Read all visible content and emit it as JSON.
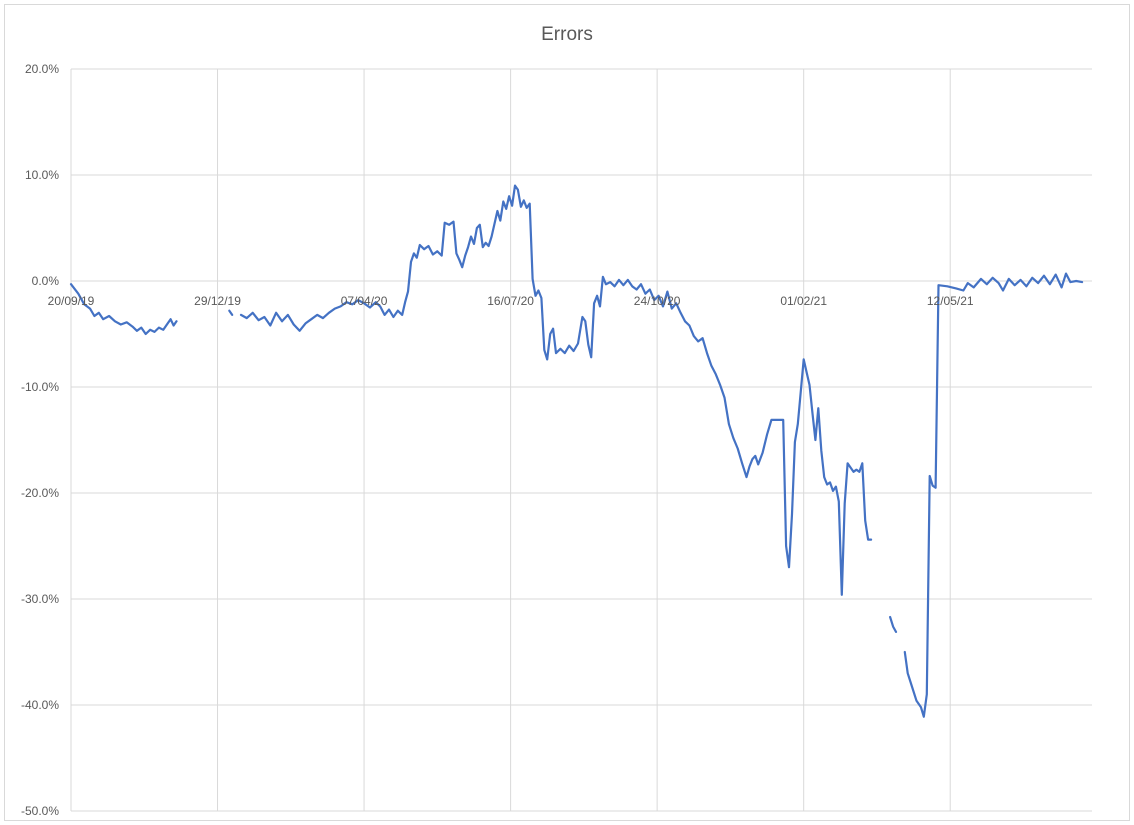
{
  "chart_data": {
    "type": "line",
    "title": "Errors",
    "xlabel": "",
    "ylabel": "",
    "x_ticks": [
      "20/09/19",
      "29/12/19",
      "07/04/20",
      "16/07/20",
      "24/10/20",
      "01/02/21",
      "12/05/21"
    ],
    "xlim": [
      "2019-09-20",
      "2021-08-20"
    ],
    "y_ticks": [
      "20.0%",
      "10.0%",
      "0.0%",
      "-10.0%",
      "-20.0%",
      "-30.0%",
      "-40.0%",
      "-50.0%"
    ],
    "ylim": [
      -50,
      20
    ],
    "y_unit": "%",
    "grid": true,
    "legend": "none",
    "line_color": "#4472c4",
    "grid_color": "#d9d9d9",
    "series": [
      {
        "segments": [
          [
            [
              "2019-09-20",
              -0.3
            ],
            [
              "2019-09-25",
              -1.2
            ],
            [
              "2019-09-29",
              -2.2
            ],
            [
              "2019-10-03",
              -2.6
            ],
            [
              "2019-10-06",
              -3.3
            ],
            [
              "2019-10-09",
              -3.0
            ],
            [
              "2019-10-12",
              -3.6
            ],
            [
              "2019-10-16",
              -3.3
            ],
            [
              "2019-10-20",
              -3.8
            ],
            [
              "2019-10-24",
              -4.1
            ],
            [
              "2019-10-28",
              -3.9
            ],
            [
              "2019-11-01",
              -4.3
            ],
            [
              "2019-11-04",
              -4.7
            ],
            [
              "2019-11-07",
              -4.4
            ],
            [
              "2019-11-10",
              -5.0
            ],
            [
              "2019-11-13",
              -4.6
            ],
            [
              "2019-11-16",
              -4.8
            ],
            [
              "2019-11-19",
              -4.4
            ],
            [
              "2019-11-22",
              -4.6
            ],
            [
              "2019-11-25",
              -4.0
            ],
            [
              "2019-11-27",
              -3.6
            ],
            [
              "2019-11-29",
              -4.2
            ],
            [
              "2019-12-01",
              -3.8
            ]
          ],
          [
            [
              "2020-01-06",
              -2.8
            ],
            [
              "2020-01-08",
              -3.2
            ]
          ],
          [
            [
              "2020-01-14",
              -3.2
            ],
            [
              "2020-01-18",
              -3.5
            ],
            [
              "2020-01-22",
              -3.0
            ],
            [
              "2020-01-26",
              -3.7
            ],
            [
              "2020-01-30",
              -3.4
            ],
            [
              "2020-02-03",
              -4.2
            ],
            [
              "2020-02-07",
              -3.0
            ],
            [
              "2020-02-11",
              -3.8
            ],
            [
              "2020-02-15",
              -3.2
            ],
            [
              "2020-02-19",
              -4.1
            ],
            [
              "2020-02-23",
              -4.7
            ],
            [
              "2020-02-27",
              -4.0
            ],
            [
              "2020-03-02",
              -3.6
            ],
            [
              "2020-03-06",
              -3.2
            ],
            [
              "2020-03-10",
              -3.5
            ],
            [
              "2020-03-14",
              -3.0
            ],
            [
              "2020-03-18",
              -2.6
            ],
            [
              "2020-03-22",
              -2.4
            ],
            [
              "2020-03-26",
              -2.0
            ],
            [
              "2020-03-30",
              -2.2
            ],
            [
              "2020-04-03",
              -1.8
            ],
            [
              "2020-04-07",
              -2.1
            ],
            [
              "2020-04-11",
              -2.5
            ],
            [
              "2020-04-15",
              -2.0
            ],
            [
              "2020-04-18",
              -2.4
            ],
            [
              "2020-04-21",
              -3.2
            ],
            [
              "2020-04-24",
              -2.7
            ],
            [
              "2020-04-27",
              -3.4
            ],
            [
              "2020-04-30",
              -2.8
            ],
            [
              "2020-05-03",
              -3.2
            ],
            [
              "2020-05-05",
              -2.0
            ],
            [
              "2020-05-07",
              -1.0
            ],
            [
              "2020-05-09",
              1.8
            ],
            [
              "2020-05-11",
              2.6
            ],
            [
              "2020-05-13",
              2.2
            ],
            [
              "2020-05-15",
              3.4
            ],
            [
              "2020-05-18",
              3.0
            ],
            [
              "2020-05-21",
              3.3
            ],
            [
              "2020-05-24",
              2.5
            ],
            [
              "2020-05-27",
              2.8
            ],
            [
              "2020-05-30",
              2.4
            ],
            [
              "2020-06-01",
              5.5
            ],
            [
              "2020-06-04",
              5.3
            ],
            [
              "2020-06-07",
              5.6
            ],
            [
              "2020-06-09",
              2.6
            ],
            [
              "2020-06-11",
              2.0
            ],
            [
              "2020-06-13",
              1.3
            ],
            [
              "2020-06-15",
              2.4
            ],
            [
              "2020-06-17",
              3.2
            ],
            [
              "2020-06-19",
              4.2
            ],
            [
              "2020-06-21",
              3.5
            ],
            [
              "2020-06-23",
              5.0
            ],
            [
              "2020-06-25",
              5.3
            ],
            [
              "2020-06-27",
              3.2
            ],
            [
              "2020-06-29",
              3.6
            ],
            [
              "2020-07-01",
              3.3
            ],
            [
              "2020-07-03",
              4.2
            ],
            [
              "2020-07-05",
              5.4
            ],
            [
              "2020-07-07",
              6.6
            ],
            [
              "2020-07-09",
              5.7
            ],
            [
              "2020-07-11",
              7.5
            ],
            [
              "2020-07-13",
              6.8
            ],
            [
              "2020-07-15",
              8.0
            ],
            [
              "2020-07-17",
              7.1
            ],
            [
              "2020-07-19",
              9.0
            ],
            [
              "2020-07-21",
              8.6
            ],
            [
              "2020-07-23",
              7.0
            ],
            [
              "2020-07-25",
              7.6
            ],
            [
              "2020-07-27",
              6.9
            ],
            [
              "2020-07-29",
              7.3
            ],
            [
              "2020-07-31",
              0.2
            ],
            [
              "2020-08-02",
              -1.4
            ],
            [
              "2020-08-04",
              -0.9
            ],
            [
              "2020-08-06",
              -1.6
            ],
            [
              "2020-08-08",
              -6.5
            ],
            [
              "2020-08-10",
              -7.4
            ],
            [
              "2020-08-12",
              -5.0
            ],
            [
              "2020-08-14",
              -4.5
            ],
            [
              "2020-08-16",
              -6.8
            ],
            [
              "2020-08-19",
              -6.4
            ],
            [
              "2020-08-22",
              -6.8
            ],
            [
              "2020-08-25",
              -6.1
            ],
            [
              "2020-08-28",
              -6.6
            ],
            [
              "2020-08-31",
              -5.9
            ],
            [
              "2020-09-03",
              -3.4
            ],
            [
              "2020-09-05",
              -3.8
            ],
            [
              "2020-09-07",
              -6.0
            ],
            [
              "2020-09-09",
              -7.2
            ],
            [
              "2020-09-11",
              -2.1
            ],
            [
              "2020-09-13",
              -1.4
            ],
            [
              "2020-09-15",
              -2.4
            ],
            [
              "2020-09-17",
              0.4
            ],
            [
              "2020-09-19",
              -0.3
            ],
            [
              "2020-09-22",
              -0.1
            ],
            [
              "2020-09-25",
              -0.5
            ],
            [
              "2020-09-28",
              0.1
            ],
            [
              "2020-10-01",
              -0.4
            ],
            [
              "2020-10-04",
              0.1
            ],
            [
              "2020-10-07",
              -0.5
            ],
            [
              "2020-10-10",
              -0.8
            ],
            [
              "2020-10-13",
              -0.3
            ],
            [
              "2020-10-16",
              -1.2
            ],
            [
              "2020-10-19",
              -0.8
            ],
            [
              "2020-10-22",
              -1.8
            ],
            [
              "2020-10-25",
              -1.4
            ],
            [
              "2020-10-28",
              -2.4
            ],
            [
              "2020-10-31",
              -1.0
            ],
            [
              "2020-11-03",
              -2.6
            ],
            [
              "2020-11-06",
              -2.1
            ],
            [
              "2020-11-09",
              -3.0
            ],
            [
              "2020-11-12",
              -3.8
            ],
            [
              "2020-11-15",
              -4.2
            ],
            [
              "2020-11-18",
              -5.2
            ],
            [
              "2020-11-21",
              -5.7
            ],
            [
              "2020-11-24",
              -5.4
            ],
            [
              "2020-11-27",
              -6.8
            ],
            [
              "2020-11-30",
              -8.0
            ],
            [
              "2020-12-03",
              -8.8
            ],
            [
              "2020-12-06",
              -9.8
            ],
            [
              "2020-12-09",
              -11.0
            ],
            [
              "2020-12-12",
              -13.5
            ],
            [
              "2020-12-15",
              -14.8
            ],
            [
              "2020-12-18",
              -15.8
            ],
            [
              "2020-12-21",
              -17.2
            ],
            [
              "2020-12-24",
              -18.5
            ],
            [
              "2020-12-26",
              -17.5
            ],
            [
              "2020-12-28",
              -16.8
            ],
            [
              "2020-12-30",
              -16.5
            ],
            [
              "2021-01-01",
              -17.3
            ],
            [
              "2021-01-04",
              -16.2
            ],
            [
              "2021-01-07",
              -14.5
            ],
            [
              "2021-01-10",
              -13.1
            ],
            [
              "2021-01-13",
              -13.1
            ],
            [
              "2021-01-16",
              -13.1
            ],
            [
              "2021-01-18",
              -13.1
            ],
            [
              "2021-01-20",
              -25.0
            ],
            [
              "2021-01-22",
              -27.0
            ],
            [
              "2021-01-24",
              -22.0
            ],
            [
              "2021-01-26",
              -15.2
            ],
            [
              "2021-01-28",
              -13.5
            ],
            [
              "2021-01-30",
              -10.5
            ],
            [
              "2021-02-01",
              -7.4
            ],
            [
              "2021-02-03",
              -8.6
            ],
            [
              "2021-02-05",
              -9.8
            ],
            [
              "2021-02-07",
              -12.5
            ],
            [
              "2021-02-09",
              -15.0
            ],
            [
              "2021-02-11",
              -12.0
            ],
            [
              "2021-02-13",
              -16.0
            ],
            [
              "2021-02-15",
              -18.5
            ],
            [
              "2021-02-17",
              -19.2
            ],
            [
              "2021-02-19",
              -19.0
            ],
            [
              "2021-02-21",
              -19.8
            ],
            [
              "2021-02-23",
              -19.4
            ],
            [
              "2021-02-25",
              -20.8
            ],
            [
              "2021-02-27",
              -29.6
            ],
            [
              "2021-03-01",
              -21.0
            ],
            [
              "2021-03-03",
              -17.2
            ],
            [
              "2021-03-05",
              -17.6
            ],
            [
              "2021-03-07",
              -18.0
            ],
            [
              "2021-03-09",
              -17.8
            ],
            [
              "2021-03-11",
              -18.0
            ],
            [
              "2021-03-13",
              -17.2
            ],
            [
              "2021-03-15",
              -22.6
            ],
            [
              "2021-03-17",
              -24.4
            ],
            [
              "2021-03-19",
              -24.4
            ]
          ],
          [
            [
              "2021-04-01",
              -31.7
            ],
            [
              "2021-04-03",
              -32.6
            ],
            [
              "2021-04-05",
              -33.1
            ]
          ],
          [
            [
              "2021-04-11",
              -35.0
            ],
            [
              "2021-04-13",
              -37.0
            ],
            [
              "2021-04-16",
              -38.3
            ],
            [
              "2021-04-19",
              -39.6
            ],
            [
              "2021-04-22",
              -40.2
            ],
            [
              "2021-04-24",
              -41.1
            ],
            [
              "2021-04-26",
              -39.0
            ],
            [
              "2021-04-28",
              -18.4
            ],
            [
              "2021-04-30",
              -19.3
            ],
            [
              "2021-05-02",
              -19.5
            ],
            [
              "2021-05-04",
              -0.4
            ],
            [
              "2021-05-10",
              -0.5
            ],
            [
              "2021-05-16",
              -0.7
            ],
            [
              "2021-05-21",
              -0.9
            ],
            [
              "2021-05-24",
              -0.2
            ],
            [
              "2021-05-28",
              -0.6
            ],
            [
              "2021-06-02",
              0.2
            ],
            [
              "2021-06-06",
              -0.3
            ],
            [
              "2021-06-10",
              0.3
            ],
            [
              "2021-06-14",
              -0.2
            ],
            [
              "2021-06-17",
              -0.9
            ],
            [
              "2021-06-21",
              0.2
            ],
            [
              "2021-06-25",
              -0.4
            ],
            [
              "2021-06-29",
              0.1
            ],
            [
              "2021-07-03",
              -0.5
            ],
            [
              "2021-07-07",
              0.3
            ],
            [
              "2021-07-11",
              -0.2
            ],
            [
              "2021-07-15",
              0.5
            ],
            [
              "2021-07-19",
              -0.3
            ],
            [
              "2021-07-23",
              0.6
            ],
            [
              "2021-07-27",
              -0.6
            ],
            [
              "2021-07-30",
              0.7
            ],
            [
              "2021-08-02",
              -0.1
            ],
            [
              "2021-08-06",
              0.0
            ],
            [
              "2021-08-10",
              -0.1
            ]
          ]
        ]
      }
    ]
  }
}
